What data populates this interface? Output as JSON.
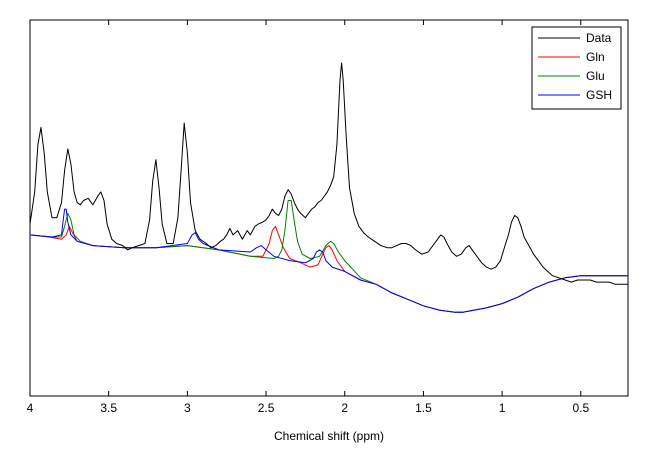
{
  "chart_data": {
    "type": "line",
    "title": "",
    "xlabel": "Chemical shift (ppm)",
    "ylabel": "",
    "xlim": [
      4.0,
      0.2
    ],
    "x_reversed": true,
    "ylim": [
      -0.75,
      1.0
    ],
    "y_ticks_shown": false,
    "grid": false,
    "legend": "top-right",
    "x_ticks": [
      {
        "value": 4.0,
        "label": "4"
      },
      {
        "value": 3.5,
        "label": "3.5"
      },
      {
        "value": 3.0,
        "label": "3"
      },
      {
        "value": 2.5,
        "label": "2.5"
      },
      {
        "value": 2.0,
        "label": "2"
      },
      {
        "value": 1.5,
        "label": "1.5"
      },
      {
        "value": 1.0,
        "label": "1"
      },
      {
        "value": 0.5,
        "label": "0.5"
      }
    ],
    "series": [
      {
        "name": "Data",
        "color": "#000000",
        "points": [
          [
            4.0,
            0.05
          ],
          [
            3.97,
            0.2
          ],
          [
            3.95,
            0.42
          ],
          [
            3.93,
            0.5
          ],
          [
            3.91,
            0.38
          ],
          [
            3.89,
            0.2
          ],
          [
            3.86,
            0.08
          ],
          [
            3.83,
            0.08
          ],
          [
            3.8,
            0.15
          ],
          [
            3.78,
            0.3
          ],
          [
            3.76,
            0.4
          ],
          [
            3.74,
            0.33
          ],
          [
            3.72,
            0.2
          ],
          [
            3.7,
            0.15
          ],
          [
            3.68,
            0.14
          ],
          [
            3.66,
            0.16
          ],
          [
            3.63,
            0.17
          ],
          [
            3.6,
            0.14
          ],
          [
            3.57,
            0.18
          ],
          [
            3.55,
            0.2
          ],
          [
            3.53,
            0.16
          ],
          [
            3.51,
            0.05
          ],
          [
            3.48,
            -0.02
          ],
          [
            3.45,
            -0.04
          ],
          [
            3.41,
            -0.05
          ],
          [
            3.38,
            -0.07
          ],
          [
            3.35,
            -0.06
          ],
          [
            3.31,
            -0.05
          ],
          [
            3.27,
            -0.04
          ],
          [
            3.24,
            0.07
          ],
          [
            3.22,
            0.25
          ],
          [
            3.2,
            0.35
          ],
          [
            3.18,
            0.22
          ],
          [
            3.16,
            0.05
          ],
          [
            3.13,
            -0.04
          ],
          [
            3.09,
            -0.04
          ],
          [
            3.06,
            0.08
          ],
          [
            3.04,
            0.3
          ],
          [
            3.02,
            0.52
          ],
          [
            3.0,
            0.38
          ],
          [
            2.98,
            0.15
          ],
          [
            2.95,
            0.02
          ],
          [
            2.92,
            -0.02
          ],
          [
            2.88,
            -0.04
          ],
          [
            2.85,
            -0.06
          ],
          [
            2.82,
            -0.05
          ],
          [
            2.79,
            -0.03
          ],
          [
            2.77,
            -0.02
          ],
          [
            2.75,
            0.0
          ],
          [
            2.73,
            0.03
          ],
          [
            2.71,
            0.0
          ],
          [
            2.68,
            0.02
          ],
          [
            2.65,
            -0.02
          ],
          [
            2.62,
            0.02
          ],
          [
            2.6,
            0.0
          ],
          [
            2.57,
            0.04
          ],
          [
            2.55,
            0.05
          ],
          [
            2.52,
            0.06
          ],
          [
            2.5,
            0.07
          ],
          [
            2.48,
            0.09
          ],
          [
            2.46,
            0.12
          ],
          [
            2.44,
            0.1
          ],
          [
            2.42,
            0.09
          ],
          [
            2.4,
            0.12
          ],
          [
            2.38,
            0.18
          ],
          [
            2.36,
            0.21
          ],
          [
            2.34,
            0.19
          ],
          [
            2.32,
            0.15
          ],
          [
            2.3,
            0.12
          ],
          [
            2.28,
            0.1
          ],
          [
            2.25,
            0.08
          ],
          [
            2.23,
            0.1
          ],
          [
            2.21,
            0.12
          ],
          [
            2.19,
            0.13
          ],
          [
            2.17,
            0.15
          ],
          [
            2.15,
            0.16
          ],
          [
            2.13,
            0.18
          ],
          [
            2.11,
            0.2
          ],
          [
            2.09,
            0.23
          ],
          [
            2.07,
            0.27
          ],
          [
            2.05,
            0.42
          ],
          [
            2.03,
            0.72
          ],
          [
            2.02,
            0.8
          ],
          [
            2.01,
            0.72
          ],
          [
            1.99,
            0.45
          ],
          [
            1.97,
            0.22
          ],
          [
            1.94,
            0.1
          ],
          [
            1.91,
            0.04
          ],
          [
            1.88,
            0.01
          ],
          [
            1.85,
            -0.01
          ],
          [
            1.81,
            -0.03
          ],
          [
            1.77,
            -0.05
          ],
          [
            1.73,
            -0.06
          ],
          [
            1.7,
            -0.06
          ],
          [
            1.67,
            -0.05
          ],
          [
            1.64,
            -0.04
          ],
          [
            1.61,
            -0.04
          ],
          [
            1.58,
            -0.05
          ],
          [
            1.55,
            -0.07
          ],
          [
            1.51,
            -0.09
          ],
          [
            1.47,
            -0.08
          ],
          [
            1.44,
            -0.05
          ],
          [
            1.41,
            -0.02
          ],
          [
            1.39,
            0.0
          ],
          [
            1.37,
            -0.01
          ],
          [
            1.35,
            -0.04
          ],
          [
            1.32,
            -0.08
          ],
          [
            1.29,
            -0.1
          ],
          [
            1.26,
            -0.09
          ],
          [
            1.23,
            -0.06
          ],
          [
            1.21,
            -0.05
          ],
          [
            1.19,
            -0.07
          ],
          [
            1.16,
            -0.1
          ],
          [
            1.13,
            -0.13
          ],
          [
            1.1,
            -0.15
          ],
          [
            1.07,
            -0.16
          ],
          [
            1.04,
            -0.15
          ],
          [
            1.01,
            -0.12
          ],
          [
            0.99,
            -0.07
          ],
          [
            0.96,
            0.0
          ],
          [
            0.94,
            0.06
          ],
          [
            0.92,
            0.09
          ],
          [
            0.9,
            0.08
          ],
          [
            0.88,
            0.04
          ],
          [
            0.86,
            -0.01
          ],
          [
            0.83,
            -0.05
          ],
          [
            0.8,
            -0.09
          ],
          [
            0.77,
            -0.12
          ],
          [
            0.74,
            -0.15
          ],
          [
            0.71,
            -0.17
          ],
          [
            0.68,
            -0.19
          ],
          [
            0.64,
            -0.2
          ],
          [
            0.6,
            -0.21
          ],
          [
            0.56,
            -0.22
          ],
          [
            0.52,
            -0.21
          ],
          [
            0.48,
            -0.21
          ],
          [
            0.44,
            -0.21
          ],
          [
            0.4,
            -0.22
          ],
          [
            0.36,
            -0.22
          ],
          [
            0.32,
            -0.22
          ],
          [
            0.28,
            -0.23
          ],
          [
            0.24,
            -0.23
          ],
          [
            0.2,
            -0.23
          ]
        ]
      },
      {
        "name": "Gln",
        "color": "#ff0000",
        "points": [
          [
            4.0,
            0.0
          ],
          [
            3.88,
            -0.01
          ],
          [
            3.8,
            -0.02
          ],
          [
            3.77,
            0.0
          ],
          [
            3.75,
            0.04
          ],
          [
            3.73,
            0.01
          ],
          [
            3.7,
            -0.03
          ],
          [
            3.6,
            -0.05
          ],
          [
            3.4,
            -0.06
          ],
          [
            3.2,
            -0.06
          ],
          [
            3.0,
            -0.05
          ],
          [
            2.8,
            -0.07
          ],
          [
            2.6,
            -0.1
          ],
          [
            2.52,
            -0.1
          ],
          [
            2.48,
            -0.04
          ],
          [
            2.46,
            0.02
          ],
          [
            2.44,
            0.04
          ],
          [
            2.42,
            0.0
          ],
          [
            2.39,
            -0.06
          ],
          [
            2.35,
            -0.11
          ],
          [
            2.28,
            -0.13
          ],
          [
            2.22,
            -0.15
          ],
          [
            2.17,
            -0.14
          ],
          [
            2.14,
            -0.09
          ],
          [
            2.12,
            -0.06
          ],
          [
            2.1,
            -0.05
          ],
          [
            2.08,
            -0.07
          ],
          [
            2.05,
            -0.12
          ],
          [
            2.0,
            -0.17
          ],
          [
            1.9,
            -0.21
          ],
          [
            1.8,
            -0.23
          ],
          [
            1.7,
            -0.27
          ],
          [
            1.6,
            -0.3
          ],
          [
            1.5,
            -0.33
          ],
          [
            1.4,
            -0.35
          ],
          [
            1.3,
            -0.36
          ],
          [
            1.25,
            -0.36
          ],
          [
            1.1,
            -0.34
          ],
          [
            1.0,
            -0.32
          ],
          [
            0.9,
            -0.29
          ],
          [
            0.8,
            -0.25
          ],
          [
            0.7,
            -0.22
          ],
          [
            0.6,
            -0.2
          ],
          [
            0.5,
            -0.19
          ],
          [
            0.4,
            -0.19
          ],
          [
            0.3,
            -0.19
          ],
          [
            0.2,
            -0.19
          ]
        ]
      },
      {
        "name": "Glu",
        "color": "#008000",
        "points": [
          [
            4.0,
            0.0
          ],
          [
            3.86,
            -0.01
          ],
          [
            3.8,
            -0.01
          ],
          [
            3.78,
            0.04
          ],
          [
            3.76,
            0.1
          ],
          [
            3.74,
            0.07
          ],
          [
            3.72,
            0.0
          ],
          [
            3.68,
            -0.03
          ],
          [
            3.6,
            -0.05
          ],
          [
            3.4,
            -0.06
          ],
          [
            3.2,
            -0.06
          ],
          [
            3.0,
            -0.05
          ],
          [
            2.8,
            -0.07
          ],
          [
            2.6,
            -0.1
          ],
          [
            2.45,
            -0.11
          ],
          [
            2.42,
            -0.1
          ],
          [
            2.4,
            -0.07
          ],
          [
            2.38,
            0.02
          ],
          [
            2.36,
            0.16
          ],
          [
            2.34,
            0.16
          ],
          [
            2.32,
            0.06
          ],
          [
            2.3,
            -0.03
          ],
          [
            2.27,
            -0.09
          ],
          [
            2.22,
            -0.11
          ],
          [
            2.16,
            -0.1
          ],
          [
            2.12,
            -0.05
          ],
          [
            2.09,
            -0.03
          ],
          [
            2.07,
            -0.04
          ],
          [
            2.04,
            -0.08
          ],
          [
            2.0,
            -0.12
          ],
          [
            1.95,
            -0.16
          ],
          [
            1.9,
            -0.2
          ],
          [
            1.8,
            -0.23
          ],
          [
            1.7,
            -0.27
          ],
          [
            1.6,
            -0.3
          ],
          [
            1.5,
            -0.33
          ],
          [
            1.4,
            -0.35
          ],
          [
            1.3,
            -0.36
          ],
          [
            1.25,
            -0.36
          ],
          [
            1.1,
            -0.34
          ],
          [
            1.0,
            -0.32
          ],
          [
            0.9,
            -0.29
          ],
          [
            0.8,
            -0.25
          ],
          [
            0.7,
            -0.22
          ],
          [
            0.6,
            -0.2
          ],
          [
            0.5,
            -0.19
          ],
          [
            0.4,
            -0.19
          ],
          [
            0.3,
            -0.19
          ],
          [
            0.2,
            -0.19
          ]
        ]
      },
      {
        "name": "GSH",
        "color": "#0000ff",
        "points": [
          [
            4.0,
            0.0
          ],
          [
            3.86,
            -0.01
          ],
          [
            3.8,
            0.0
          ],
          [
            3.79,
            0.06
          ],
          [
            3.78,
            0.12
          ],
          [
            3.77,
            0.12
          ],
          [
            3.76,
            0.06
          ],
          [
            3.74,
            0.0
          ],
          [
            3.7,
            -0.03
          ],
          [
            3.6,
            -0.05
          ],
          [
            3.4,
            -0.06
          ],
          [
            3.2,
            -0.06
          ],
          [
            3.0,
            -0.04
          ],
          [
            2.97,
            0.0
          ],
          [
            2.95,
            0.01
          ],
          [
            2.93,
            -0.02
          ],
          [
            2.9,
            -0.04
          ],
          [
            2.8,
            -0.07
          ],
          [
            2.6,
            -0.08
          ],
          [
            2.56,
            -0.06
          ],
          [
            2.53,
            -0.05
          ],
          [
            2.5,
            -0.07
          ],
          [
            2.45,
            -0.1
          ],
          [
            2.35,
            -0.12
          ],
          [
            2.25,
            -0.13
          ],
          [
            2.2,
            -0.11
          ],
          [
            2.18,
            -0.08
          ],
          [
            2.16,
            -0.07
          ],
          [
            2.14,
            -0.08
          ],
          [
            2.12,
            -0.12
          ],
          [
            2.08,
            -0.15
          ],
          [
            2.0,
            -0.17
          ],
          [
            1.9,
            -0.21
          ],
          [
            1.8,
            -0.23
          ],
          [
            1.7,
            -0.27
          ],
          [
            1.6,
            -0.3
          ],
          [
            1.5,
            -0.33
          ],
          [
            1.4,
            -0.35
          ],
          [
            1.3,
            -0.36
          ],
          [
            1.25,
            -0.36
          ],
          [
            1.1,
            -0.34
          ],
          [
            1.0,
            -0.32
          ],
          [
            0.9,
            -0.29
          ],
          [
            0.8,
            -0.25
          ],
          [
            0.7,
            -0.22
          ],
          [
            0.6,
            -0.2
          ],
          [
            0.5,
            -0.19
          ],
          [
            0.4,
            -0.19
          ],
          [
            0.3,
            -0.19
          ],
          [
            0.2,
            -0.19
          ]
        ]
      }
    ]
  }
}
